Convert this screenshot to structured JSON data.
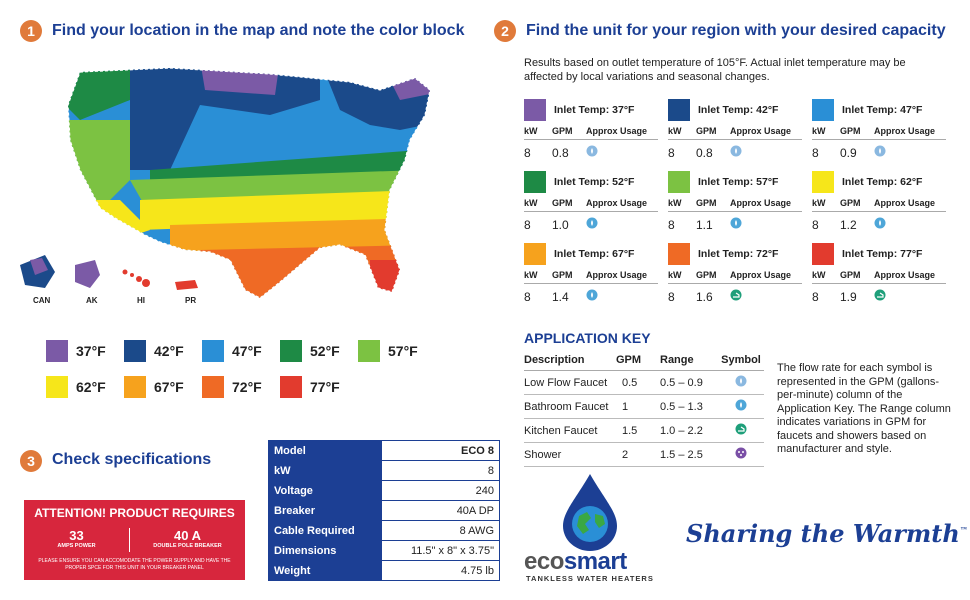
{
  "step1": {
    "num": "1",
    "title": "Find your location in the map and note the color block"
  },
  "step2": {
    "num": "2",
    "title": "Find the unit for your region with your desired capacity",
    "note": "Results based on outlet temperature of 105°F. Actual inlet temperature may be affected by local variations and seasonal changes."
  },
  "step3": {
    "num": "3",
    "title": "Check specifications"
  },
  "map": {
    "labels": [
      "CAN",
      "AK",
      "HI",
      "PR"
    ]
  },
  "legend": [
    {
      "label": "37°F",
      "color": "#7b5aa6"
    },
    {
      "label": "42°F",
      "color": "#1b4a8a"
    },
    {
      "label": "47°F",
      "color": "#2a8fd6"
    },
    {
      "label": "52°F",
      "color": "#1e8a45"
    },
    {
      "label": "57°F",
      "color": "#7cc242"
    },
    {
      "label": "62°F",
      "color": "#f6e61a"
    },
    {
      "label": "67°F",
      "color": "#f6a21d"
    },
    {
      "label": "72°F",
      "color": "#ef6a25"
    },
    {
      "label": "77°F",
      "color": "#e23b2e"
    }
  ],
  "unit_cols": {
    "kw": "kW",
    "gpm": "GPM",
    "usage": "Approx Usage"
  },
  "units": [
    {
      "inlet": "Inlet Temp: 37°F",
      "color": "#7b5aa6",
      "kw": "8",
      "gpm": "0.8",
      "icon": "low-flow-faucet"
    },
    {
      "inlet": "Inlet Temp: 42°F",
      "color": "#1b4a8a",
      "kw": "8",
      "gpm": "0.8",
      "icon": "low-flow-faucet"
    },
    {
      "inlet": "Inlet Temp: 47°F",
      "color": "#2a8fd6",
      "kw": "8",
      "gpm": "0.9",
      "icon": "low-flow-faucet"
    },
    {
      "inlet": "Inlet Temp: 52°F",
      "color": "#1e8a45",
      "kw": "8",
      "gpm": "1.0",
      "icon": "bathroom-faucet"
    },
    {
      "inlet": "Inlet Temp: 57°F",
      "color": "#7cc242",
      "kw": "8",
      "gpm": "1.1",
      "icon": "bathroom-faucet"
    },
    {
      "inlet": "Inlet Temp: 62°F",
      "color": "#f6e61a",
      "kw": "8",
      "gpm": "1.2",
      "icon": "bathroom-faucet"
    },
    {
      "inlet": "Inlet Temp: 67°F",
      "color": "#f6a21d",
      "kw": "8",
      "gpm": "1.4",
      "icon": "bathroom-faucet"
    },
    {
      "inlet": "Inlet Temp: 72°F",
      "color": "#ef6a25",
      "kw": "8",
      "gpm": "1.6",
      "icon": "kitchen-faucet"
    },
    {
      "inlet": "Inlet Temp: 77°F",
      "color": "#e23b2e",
      "kw": "8",
      "gpm": "1.9",
      "icon": "kitchen-faucet"
    }
  ],
  "appkey": {
    "title": "APPLICATION KEY",
    "headers": [
      "Description",
      "GPM",
      "Range",
      "Symbol"
    ],
    "rows": [
      {
        "desc": "Low Flow Faucet",
        "gpm": "0.5",
        "range": "0.5 – 0.9",
        "icon": "low-flow-faucet"
      },
      {
        "desc": "Bathroom Faucet",
        "gpm": "1",
        "range": "0.5 – 1.3",
        "icon": "bathroom-faucet"
      },
      {
        "desc": "Kitchen Faucet",
        "gpm": "1.5",
        "range": "1.0 – 2.2",
        "icon": "kitchen-faucet"
      },
      {
        "desc": "Shower",
        "gpm": "2",
        "range": "1.5 – 2.5",
        "icon": "shower"
      }
    ],
    "note": "The flow rate for each symbol is represented in the GPM (gallons-per-minute) column of the Application Key. The Range column indicates variations in GPM for faucets and showers based on manufacturer and style."
  },
  "attention": {
    "title": "ATTENTION! PRODUCT REQUIRES",
    "amps": "33",
    "amps_label": "AMPS POWER",
    "breaker": "40 A",
    "breaker_label": "DOUBLE POLE BREAKER",
    "note": "PLEASE ENSURE YOU CAN ACCOMODATE THE POWER SUPPLY AND HAVE THE PROPER SPCE FOR THIS UNIT IN YOUR BREAKER PANEL"
  },
  "specs": [
    {
      "k": "Model",
      "v": "ECO 8"
    },
    {
      "k": "kW",
      "v": "8"
    },
    {
      "k": "Voltage",
      "v": "240"
    },
    {
      "k": "Breaker",
      "v": "40A DP"
    },
    {
      "k": "Cable Required",
      "v": "8 AWG"
    },
    {
      "k": "Dimensions",
      "v": "11.5\" x 8\" x 3.75\""
    },
    {
      "k": "Weight",
      "v": "4.75 lb"
    }
  ],
  "brand": {
    "name_a": "eco",
    "name_b": "smart",
    "tagline": "TANKLESS WATER HEATERS",
    "slogan": "Sharing the Warmth",
    "tm": "™"
  },
  "icon_colors": {
    "low-flow-faucet": "#8ab8e0",
    "bathroom-faucet": "#4ea6d8",
    "kitchen-faucet": "#1e9f7a",
    "shower": "#7a4fa6"
  }
}
